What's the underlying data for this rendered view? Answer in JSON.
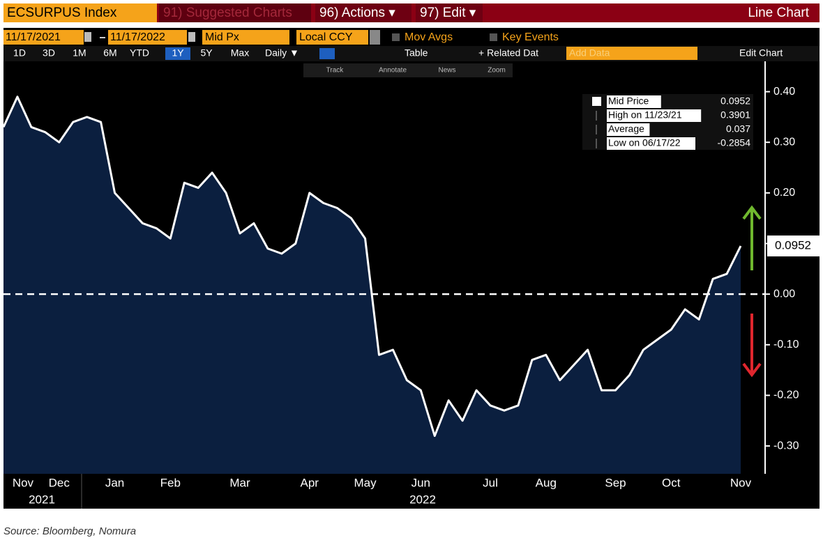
{
  "toolbar": {
    "ticker": "ECSURPUS Index",
    "suggested": "91) Suggested Charts",
    "actions": "96) Actions ▾",
    "edit": "97) Edit ▾",
    "chart_kind": "Line Chart",
    "start_date": "11/17/2021",
    "end_date": "11/17/2022",
    "field": "Mid Px",
    "currency": "Local CCY",
    "mov_avgs": "Mov Avgs",
    "key_events": "Key Events",
    "periods": [
      "1D",
      "3D",
      "1M",
      "6M",
      "YTD",
      "1Y",
      "5Y",
      "Max"
    ],
    "frequency": "Daily ▼",
    "table": "Table",
    "related": "+ Related Dat",
    "add_data": "Add Data",
    "edit_chart": "Edit Chart",
    "tools": [
      "Track",
      "Annotate",
      "News",
      "Zoom"
    ]
  },
  "chart_data": {
    "type": "line",
    "categories": [
      null,
      "Nov",
      null,
      null,
      "Dec",
      null,
      null,
      null,
      "Jan",
      null,
      null,
      null,
      "Feb",
      null,
      null,
      null,
      null,
      "Mar",
      null,
      null,
      null,
      null,
      "Apr",
      null,
      null,
      null,
      "May",
      null,
      null,
      null,
      "Jun",
      null,
      null,
      null,
      null,
      "Jul",
      null,
      null,
      null,
      "Aug",
      null,
      null,
      null,
      null,
      "Sep",
      null,
      null,
      null,
      "Oct",
      null,
      null,
      null,
      null,
      "Nov"
    ],
    "year_labels": [
      "2021",
      "2022"
    ],
    "series": [
      {
        "name": "Mid Price",
        "color": "#ffffff",
        "area_color": "#0b1f3f",
        "values": [
          0.33,
          0.39,
          0.33,
          0.32,
          0.3,
          0.34,
          0.35,
          0.34,
          0.2,
          0.17,
          0.14,
          0.13,
          0.11,
          0.22,
          0.21,
          0.24,
          0.2,
          0.12,
          0.14,
          0.09,
          0.08,
          0.1,
          0.2,
          0.18,
          0.17,
          0.15,
          0.11,
          -0.12,
          -0.11,
          -0.17,
          -0.19,
          -0.28,
          -0.21,
          -0.25,
          -0.19,
          -0.22,
          -0.23,
          -0.22,
          -0.13,
          -0.12,
          -0.17,
          -0.14,
          -0.11,
          -0.19,
          -0.19,
          -0.16,
          -0.11,
          -0.09,
          -0.07,
          -0.03,
          -0.05,
          0.03,
          0.04,
          0.0952
        ]
      }
    ],
    "ylim": [
      -0.355,
      0.46
    ],
    "yticks": [
      {
        "value": 0.4,
        "label": "0.40"
      },
      {
        "value": 0.3,
        "label": "0.30"
      },
      {
        "value": 0.2,
        "label": "0.20"
      },
      {
        "value": 0.1,
        "label": "0.10"
      },
      {
        "value": 0,
        "label": "0.00"
      },
      {
        "value": -0.1,
        "label": "-0.10"
      },
      {
        "value": -0.2,
        "label": "-0.20"
      },
      {
        "value": -0.3,
        "label": "-0.30"
      }
    ],
    "zero_line": true,
    "legend": [
      {
        "name": "Mid Price",
        "value": 0.0952
      },
      {
        "name": "High on 11/23/21",
        "value": 0.3901
      },
      {
        "name": "Average",
        "value": 0.037
      },
      {
        "name": "Low on 06/17/22",
        "value": -0.2854
      }
    ]
  },
  "source": "Source: Bloomberg, Nomura"
}
